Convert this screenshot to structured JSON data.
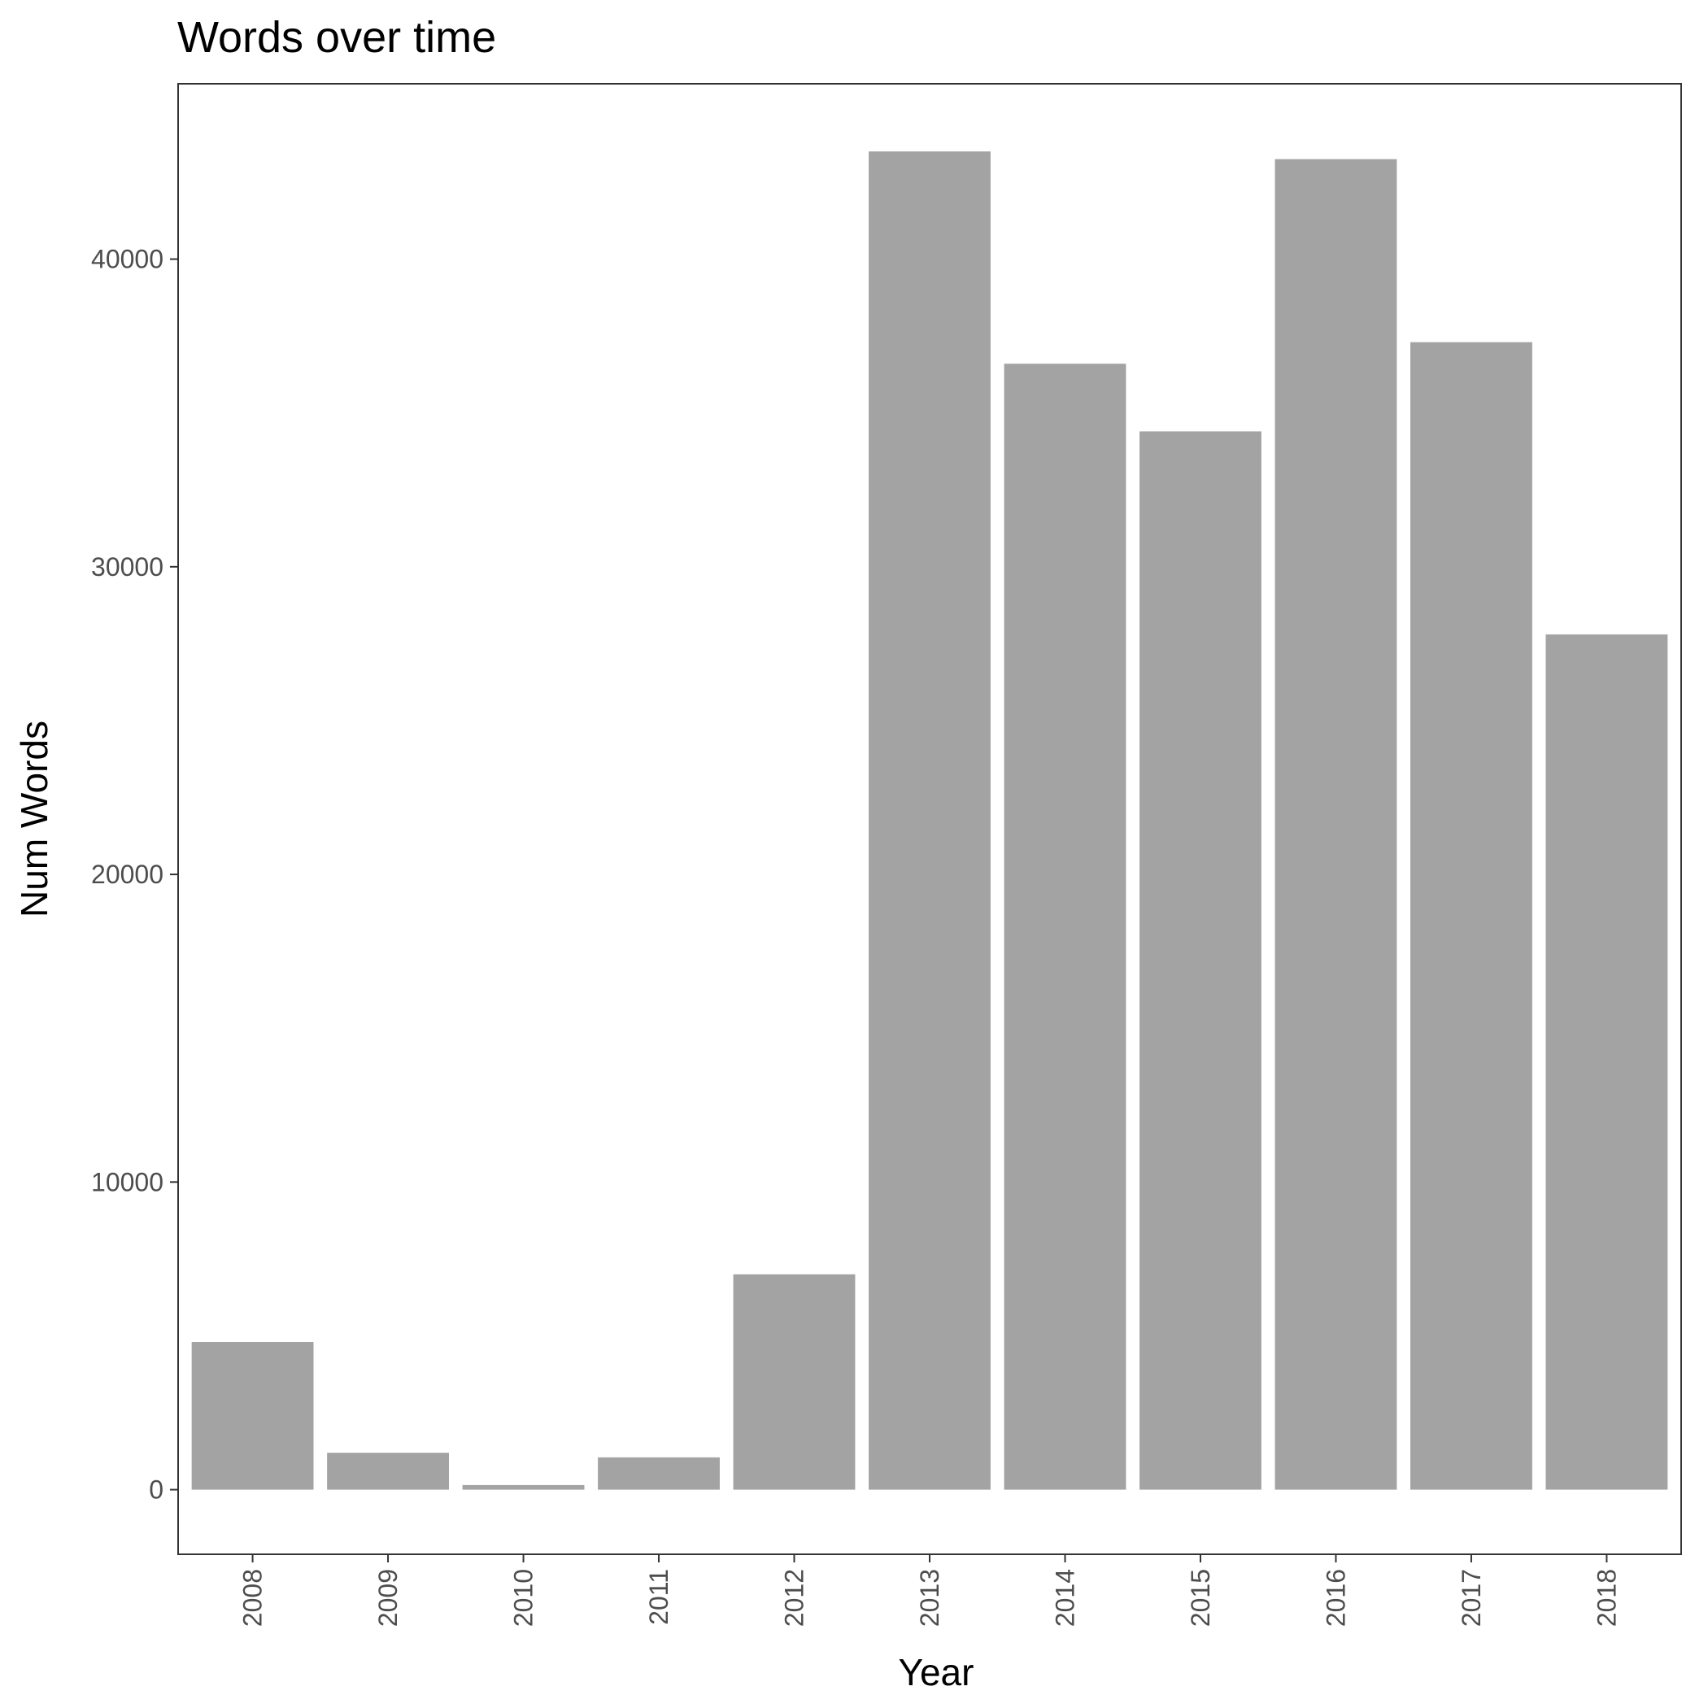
{
  "chart_data": {
    "type": "bar",
    "title": "Words over time",
    "xlabel": "Year",
    "ylabel": "Num Words",
    "categories": [
      "2008",
      "2009",
      "2010",
      "2011",
      "2012",
      "2013",
      "2014",
      "2015",
      "2016",
      "2017",
      "2018"
    ],
    "values": [
      4800,
      1200,
      150,
      1050,
      7000,
      43500,
      36600,
      34400,
      43250,
      37300,
      27800
    ],
    "yticks": [
      0,
      10000,
      20000,
      30000,
      40000
    ],
    "ylim": [
      -2100,
      45700
    ],
    "grid": false,
    "legend": "none",
    "colors": {
      "bar": "#a3a3a3",
      "panel_border": "#333333",
      "axis_text": "#4d4d4d"
    }
  }
}
